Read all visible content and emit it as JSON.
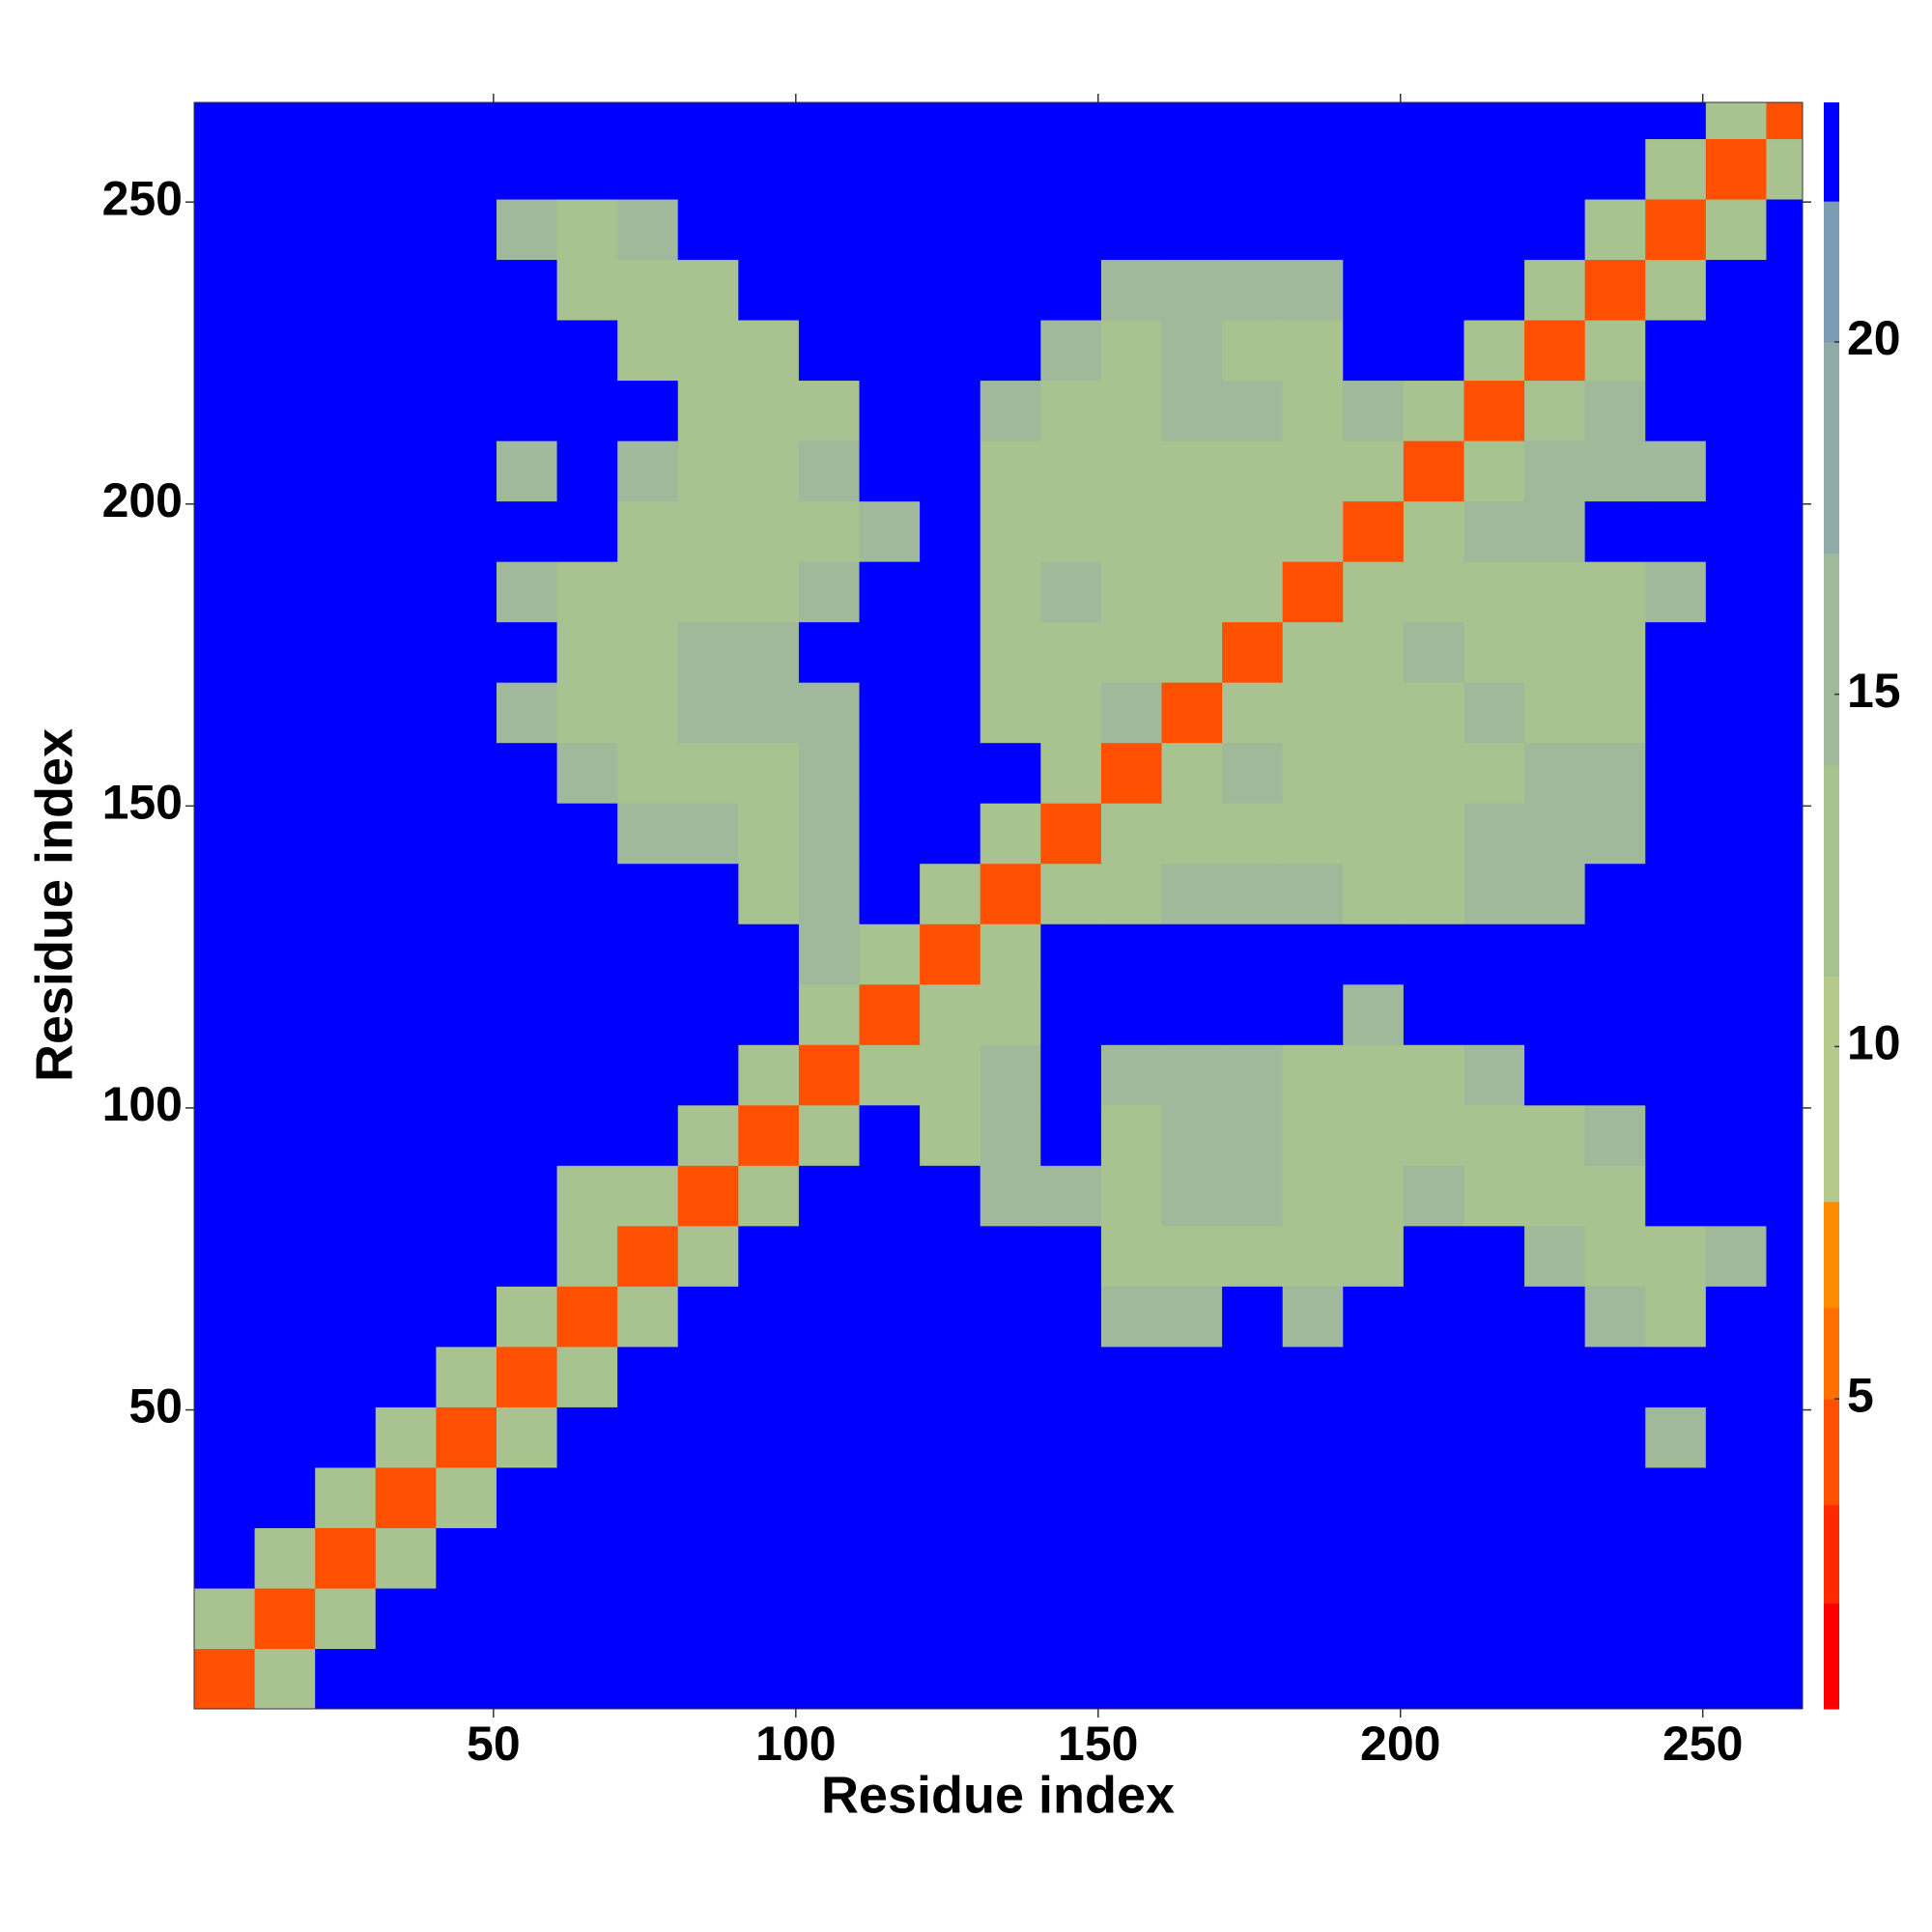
{
  "chart_data": {
    "type": "heatmap",
    "xlabel": "Residue index",
    "ylabel": "Residue index",
    "bins": [
      0.5,
      10.5,
      20.5,
      30.5,
      40.5,
      50.5,
      60.5,
      70.5,
      80.5,
      90.5,
      100.5,
      110.5,
      120.5,
      130.5,
      140.5,
      150.5,
      160.5,
      170.5,
      180.5,
      190.5,
      200.5,
      210.5,
      220.5,
      230.5,
      240.5,
      250.5,
      260.5,
      266.5
    ],
    "xlim": [
      0.5,
      266.5
    ],
    "ylim": [
      0.5,
      266.5
    ],
    "xticks": [
      50,
      100,
      150,
      200,
      250
    ],
    "yticks": [
      50,
      100,
      150,
      200,
      250
    ],
    "levels": [
      0.6,
      2.1,
      3.5,
      5,
      6.3,
      7.8,
      11,
      14,
      17,
      20,
      22,
      23.4
    ],
    "colors": [
      "#ff0000",
      "#ff2a00",
      "#ff4f00",
      "#ff7000",
      "#ff8c00",
      "#b5c98a",
      "#a8c290",
      "#9fb99a",
      "#90aba8",
      "#7c9bb5",
      "#0000ff"
    ],
    "colorbar_ticks": [
      5,
      10,
      15,
      20
    ],
    "z": [
      [
        4,
        12,
        23,
        23,
        23,
        23,
        23,
        23,
        23,
        23,
        23,
        23,
        23,
        23,
        23,
        23,
        23,
        23,
        23,
        23,
        23,
        23,
        23,
        23,
        23,
        23,
        23
      ],
      [
        12,
        4,
        12,
        23,
        23,
        23,
        23,
        23,
        23,
        23,
        23,
        23,
        23,
        23,
        23,
        23,
        23,
        23,
        23,
        23,
        23,
        23,
        23,
        23,
        23,
        23,
        23
      ],
      [
        23,
        12,
        4,
        12,
        23,
        23,
        23,
        23,
        23,
        23,
        23,
        23,
        23,
        23,
        23,
        23,
        23,
        23,
        23,
        23,
        23,
        23,
        23,
        23,
        23,
        23,
        23
      ],
      [
        23,
        23,
        12,
        4,
        12,
        23,
        23,
        23,
        23,
        23,
        23,
        23,
        23,
        23,
        23,
        23,
        23,
        23,
        23,
        23,
        23,
        23,
        23,
        23,
        23,
        23,
        23
      ],
      [
        23,
        23,
        23,
        12,
        4,
        12,
        23,
        23,
        23,
        23,
        23,
        23,
        23,
        23,
        23,
        23,
        23,
        23,
        23,
        23,
        23,
        23,
        23,
        23,
        17,
        23,
        23
      ],
      [
        23,
        23,
        23,
        23,
        12,
        4,
        12,
        23,
        23,
        23,
        23,
        23,
        23,
        23,
        23,
        23,
        23,
        23,
        23,
        23,
        23,
        23,
        23,
        23,
        23,
        23,
        23
      ],
      [
        23,
        23,
        23,
        23,
        23,
        12,
        4,
        12,
        23,
        23,
        23,
        23,
        23,
        23,
        23,
        17,
        17,
        23,
        17,
        23,
        23,
        23,
        23,
        17,
        12,
        23,
        23
      ],
      [
        23,
        23,
        23,
        23,
        23,
        23,
        12,
        4,
        12,
        23,
        23,
        23,
        23,
        23,
        23,
        12,
        12,
        12,
        12,
        12,
        23,
        23,
        17,
        12,
        12,
        17,
        23
      ],
      [
        23,
        23,
        23,
        23,
        23,
        23,
        12,
        12,
        4,
        12,
        23,
        23,
        23,
        17,
        17,
        12,
        17,
        17,
        12,
        12,
        17,
        12,
        12,
        12,
        23,
        23,
        23
      ],
      [
        23,
        23,
        23,
        23,
        23,
        23,
        23,
        23,
        12,
        4,
        12,
        23,
        12,
        17,
        23,
        12,
        17,
        17,
        12,
        12,
        12,
        12,
        12,
        17,
        23,
        23,
        23
      ],
      [
        23,
        23,
        23,
        23,
        23,
        23,
        23,
        23,
        23,
        12,
        4,
        12,
        12,
        17,
        23,
        17,
        17,
        17,
        12,
        12,
        12,
        17,
        23,
        23,
        23,
        23,
        23
      ],
      [
        23,
        23,
        23,
        23,
        23,
        23,
        23,
        23,
        23,
        23,
        12,
        4,
        12,
        12,
        23,
        23,
        23,
        23,
        23,
        17,
        23,
        23,
        23,
        23,
        23,
        23,
        23
      ],
      [
        23,
        23,
        23,
        23,
        23,
        23,
        23,
        23,
        23,
        23,
        17,
        12,
        4,
        12,
        23,
        23,
        23,
        23,
        23,
        23,
        23,
        23,
        23,
        23,
        23,
        23,
        23
      ],
      [
        23,
        23,
        23,
        23,
        23,
        23,
        23,
        23,
        23,
        12,
        17,
        23,
        12,
        4,
        12,
        12,
        17,
        17,
        17,
        12,
        12,
        17,
        17,
        23,
        23,
        23,
        23
      ],
      [
        23,
        23,
        23,
        23,
        23,
        23,
        23,
        17,
        17,
        12,
        17,
        23,
        23,
        12,
        4,
        12,
        12,
        12,
        12,
        12,
        12,
        17,
        17,
        17,
        23,
        23,
        23
      ],
      [
        23,
        23,
        23,
        23,
        23,
        23,
        17,
        12,
        12,
        12,
        17,
        23,
        23,
        23,
        12,
        4,
        12,
        17,
        12,
        12,
        12,
        12,
        17,
        17,
        23,
        23,
        23
      ],
      [
        23,
        23,
        23,
        23,
        23,
        17,
        12,
        12,
        17,
        17,
        17,
        23,
        23,
        12,
        12,
        17,
        4,
        12,
        12,
        12,
        12,
        17,
        12,
        12,
        23,
        23,
        23
      ],
      [
        23,
        23,
        23,
        23,
        23,
        23,
        12,
        12,
        17,
        17,
        23,
        23,
        23,
        12,
        12,
        12,
        12,
        4,
        12,
        12,
        17,
        12,
        12,
        12,
        23,
        23,
        23
      ],
      [
        23,
        23,
        23,
        23,
        23,
        17,
        12,
        12,
        12,
        12,
        17,
        23,
        23,
        12,
        17,
        12,
        12,
        12,
        4,
        12,
        12,
        12,
        12,
        12,
        17,
        23,
        23
      ],
      [
        23,
        23,
        23,
        23,
        23,
        23,
        23,
        12,
        12,
        12,
        12,
        17,
        23,
        12,
        12,
        12,
        12,
        12,
        12,
        4,
        12,
        17,
        17,
        23,
        23,
        23,
        23
      ],
      [
        23,
        23,
        23,
        23,
        23,
        17,
        23,
        17,
        12,
        12,
        17,
        23,
        23,
        12,
        12,
        12,
        12,
        12,
        12,
        12,
        4,
        12,
        17,
        17,
        17,
        23,
        23
      ],
      [
        23,
        23,
        23,
        23,
        23,
        23,
        23,
        23,
        12,
        12,
        12,
        23,
        23,
        17,
        12,
        12,
        17,
        17,
        12,
        17,
        12,
        4,
        12,
        17,
        23,
        23,
        23
      ],
      [
        23,
        23,
        23,
        23,
        23,
        23,
        23,
        12,
        12,
        12,
        23,
        23,
        23,
        23,
        17,
        12,
        17,
        12,
        12,
        23,
        23,
        12,
        4,
        12,
        23,
        23,
        23
      ],
      [
        23,
        23,
        23,
        23,
        23,
        23,
        12,
        12,
        12,
        23,
        23,
        23,
        23,
        23,
        23,
        17,
        17,
        17,
        17,
        23,
        23,
        23,
        12,
        4,
        12,
        23,
        23
      ],
      [
        23,
        23,
        23,
        23,
        23,
        17,
        12,
        17,
        23,
        23,
        23,
        23,
        23,
        23,
        23,
        23,
        23,
        23,
        23,
        23,
        23,
        23,
        23,
        12,
        4,
        12,
        23
      ],
      [
        23,
        23,
        23,
        23,
        23,
        23,
        23,
        23,
        23,
        23,
        23,
        23,
        23,
        23,
        23,
        23,
        23,
        23,
        23,
        23,
        23,
        23,
        23,
        23,
        12,
        4,
        12
      ],
      [
        23,
        23,
        23,
        23,
        23,
        23,
        23,
        23,
        23,
        23,
        23,
        23,
        23,
        23,
        23,
        23,
        23,
        23,
        23,
        23,
        23,
        23,
        23,
        23,
        23,
        12,
        4
      ]
    ]
  }
}
